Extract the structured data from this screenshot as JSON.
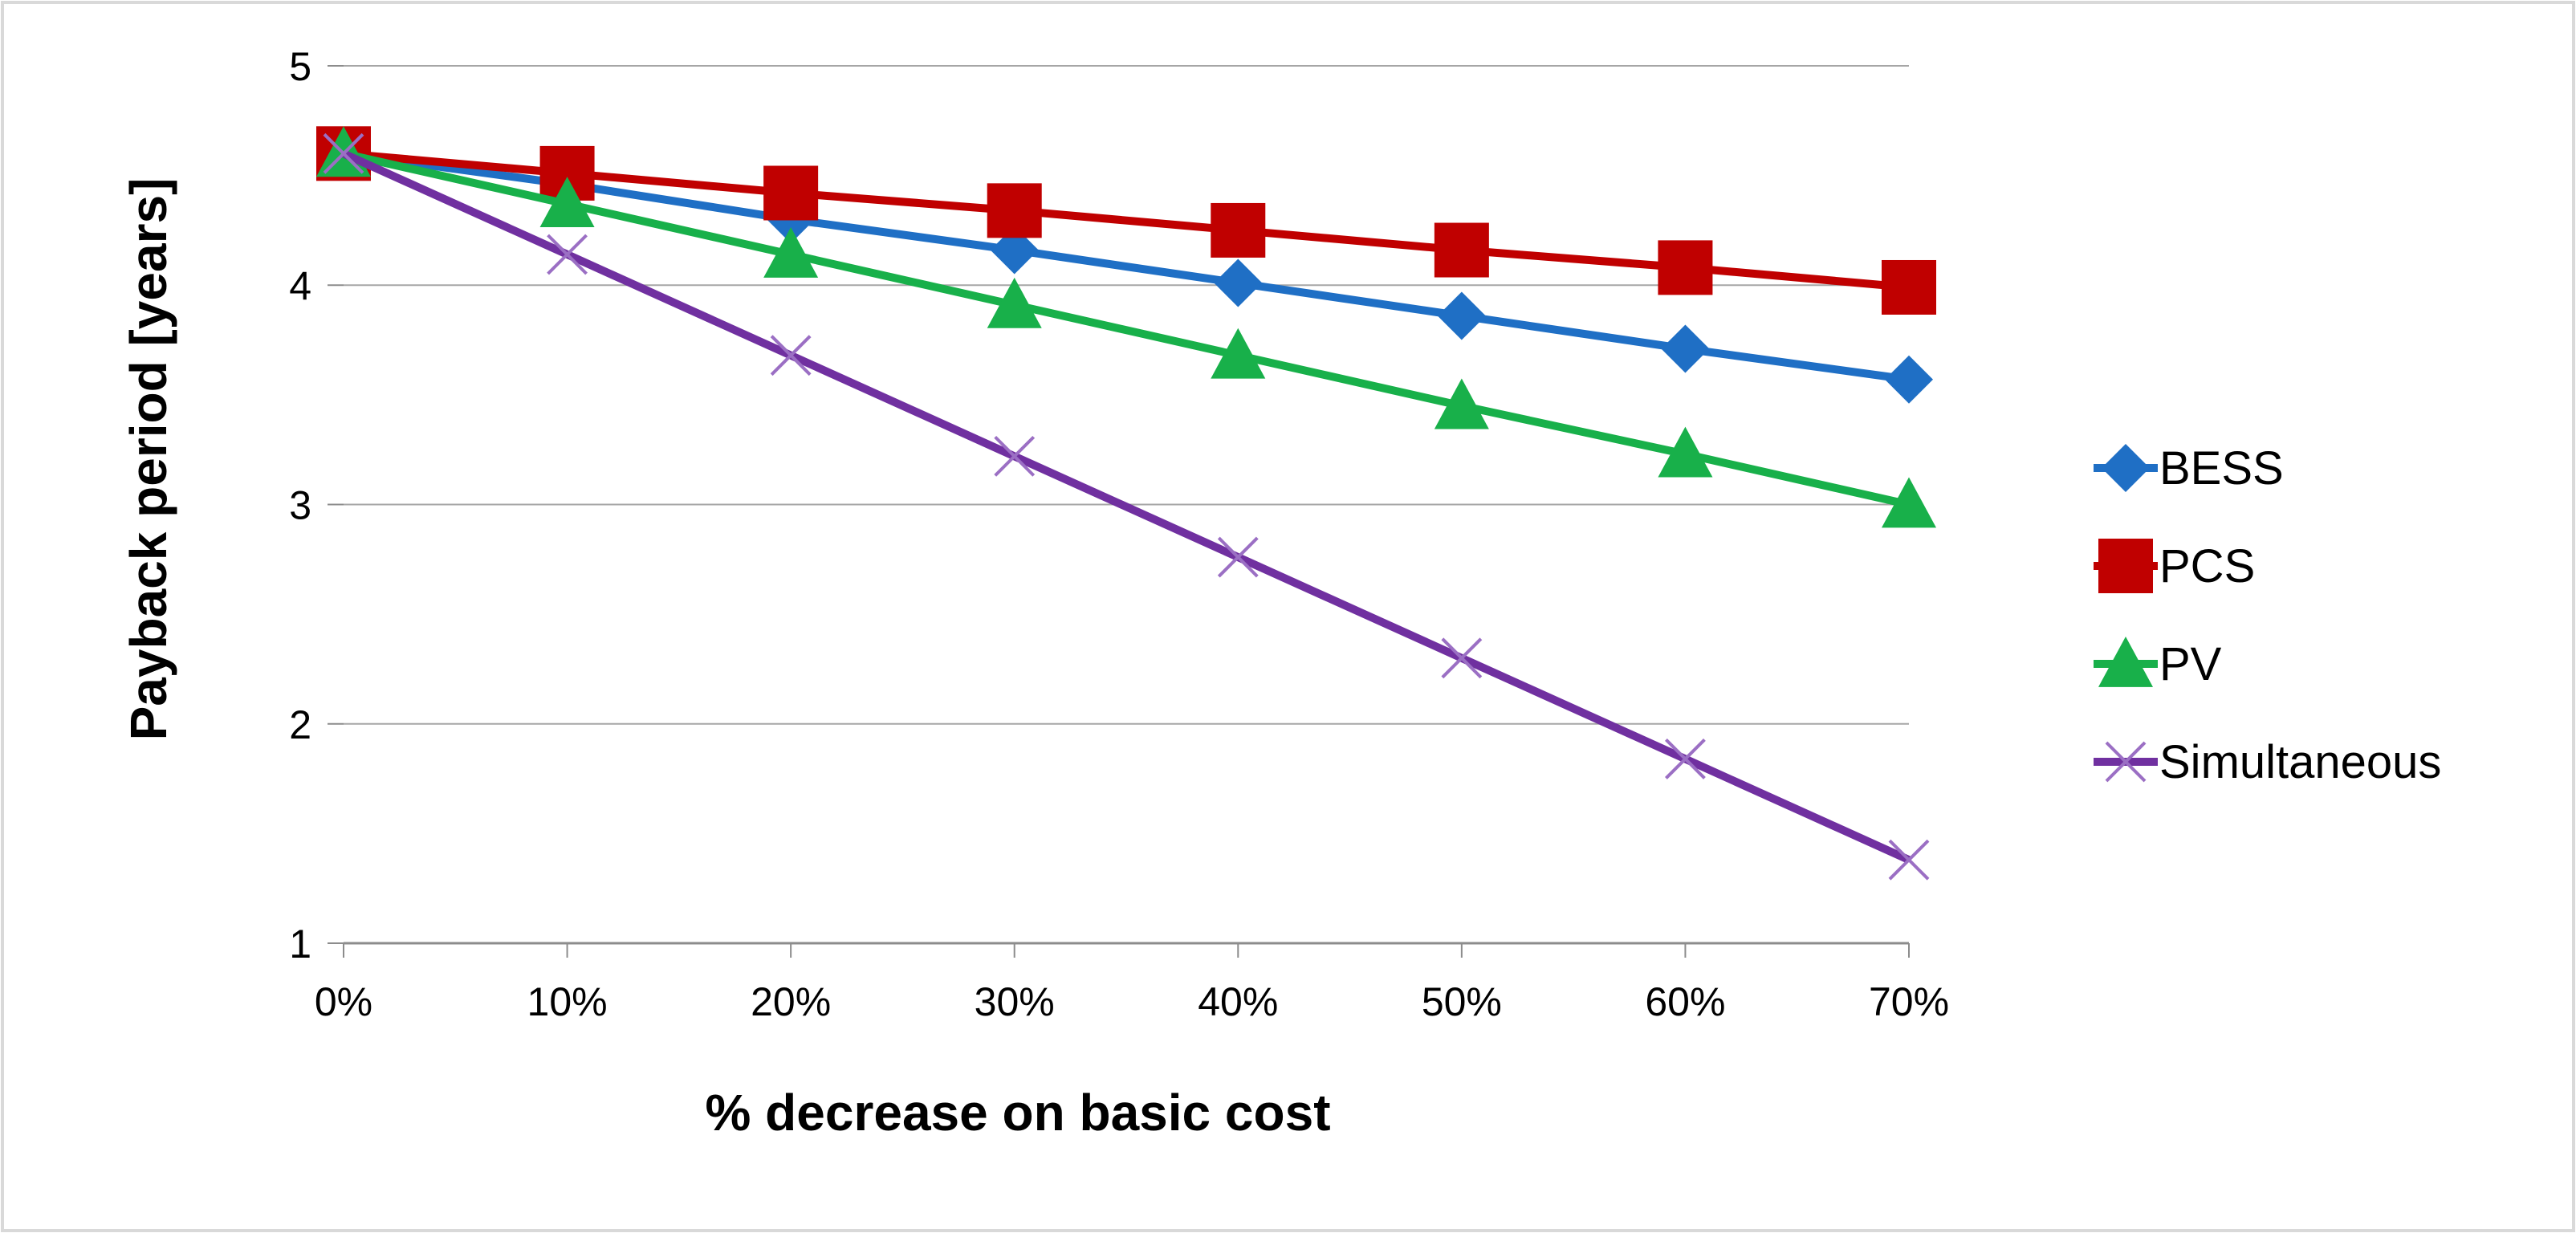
{
  "chart_data": {
    "type": "line",
    "title": "",
    "xlabel": "% decrease on basic cost",
    "ylabel": "Payback period [years]",
    "categories": [
      "0%",
      "10%",
      "20%",
      "30%",
      "40%",
      "50%",
      "60%",
      "70%"
    ],
    "ylim": [
      1,
      5
    ],
    "yticks": [
      1,
      2,
      3,
      4,
      5
    ],
    "grid": true,
    "legend_position": "right",
    "series": [
      {
        "name": "BESS",
        "color": "#1F6FC5",
        "marker": "diamond",
        "values": [
          4.6,
          4.46,
          4.3,
          4.16,
          4.01,
          3.86,
          3.71,
          3.57
        ]
      },
      {
        "name": "PCS",
        "color": "#C00000",
        "marker": "square",
        "values": [
          4.6,
          4.51,
          4.42,
          4.34,
          4.25,
          4.16,
          4.08,
          3.99
        ]
      },
      {
        "name": "PV",
        "color": "#18B04A",
        "marker": "triangle",
        "values": [
          4.6,
          4.37,
          4.14,
          3.91,
          3.68,
          3.45,
          3.23,
          3.0
        ]
      },
      {
        "name": "Simultaneous",
        "color": "#7030A0",
        "marker": "x",
        "values": [
          4.6,
          4.14,
          3.68,
          3.22,
          2.76,
          2.3,
          1.84,
          1.38
        ]
      }
    ]
  }
}
